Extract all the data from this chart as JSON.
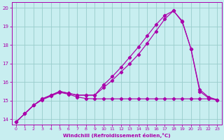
{
  "xlabel": "Windchill (Refroidissement éolien,°C)",
  "xlim": [
    -0.5,
    23.5
  ],
  "ylim": [
    13.7,
    20.3
  ],
  "xticks": [
    0,
    1,
    2,
    3,
    4,
    5,
    6,
    7,
    8,
    9,
    10,
    11,
    12,
    13,
    14,
    15,
    16,
    17,
    18,
    19,
    20,
    21,
    22,
    23
  ],
  "yticks": [
    14,
    15,
    16,
    17,
    18,
    19,
    20
  ],
  "bg_color": "#c8eef0",
  "line_color": "#aa00aa",
  "grid_color": "#99cccc",
  "line1_x": [
    0,
    1,
    2,
    3,
    4,
    5,
    6,
    7,
    8,
    9,
    10,
    11,
    12,
    13,
    14,
    15,
    16,
    17,
    18,
    19,
    20,
    21,
    22,
    23
  ],
  "line1_y": [
    13.85,
    14.3,
    14.75,
    15.05,
    15.25,
    15.45,
    15.35,
    15.2,
    15.12,
    15.1,
    15.1,
    15.1,
    15.1,
    15.1,
    15.1,
    15.1,
    15.1,
    15.1,
    15.1,
    15.1,
    15.1,
    15.1,
    15.1,
    15.05
  ],
  "line2_x": [
    0,
    1,
    2,
    3,
    4,
    5,
    6,
    7,
    8,
    9,
    10,
    11,
    12,
    13,
    14,
    15,
    16,
    17,
    18,
    19,
    20,
    21,
    22,
    23
  ],
  "line2_y": [
    13.85,
    14.3,
    14.75,
    15.1,
    15.3,
    15.5,
    15.4,
    15.3,
    15.3,
    15.3,
    15.7,
    16.1,
    16.55,
    17.0,
    17.5,
    18.1,
    18.75,
    19.4,
    19.85,
    19.3,
    17.8,
    15.6,
    15.2,
    15.05
  ],
  "line3_x": [
    0,
    1,
    2,
    3,
    4,
    5,
    6,
    7,
    8,
    9,
    10,
    11,
    12,
    13,
    14,
    15,
    16,
    17,
    18,
    19,
    20,
    21,
    22,
    23
  ],
  "line3_y": [
    13.85,
    14.3,
    14.75,
    15.1,
    15.3,
    15.5,
    15.4,
    15.3,
    15.3,
    15.3,
    15.85,
    16.3,
    16.8,
    17.35,
    17.9,
    18.5,
    19.1,
    19.6,
    19.85,
    19.25,
    17.8,
    15.5,
    15.15,
    15.05
  ]
}
